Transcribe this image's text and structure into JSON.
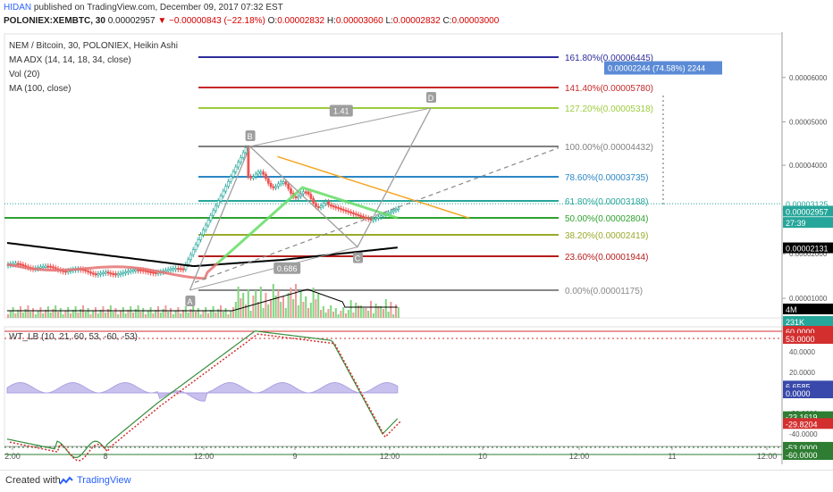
{
  "header": {
    "author": "HIDAN",
    "published": "published on TradingView.com, December 09, 2017 07:32 EST",
    "symbol": "POLONIEX:XEMBTC, 30",
    "price": "0.00002957",
    "change_arrow": "▼",
    "change": "−0.00000843 (−22.18%)",
    "o_label": "O:",
    "o": "0.00002832",
    "h_label": "H:",
    "h": "0.00003060",
    "l_label": "L:",
    "l": "0.00002832",
    "c_label": "C:",
    "c": "0.00003000"
  },
  "legend": {
    "title": "NEM / Bitcoin, 30, POLONIEX, Heikin Ashi",
    "adx": "MA ADX (14, 14, 18, 34, close)",
    "vol": "Vol (20)",
    "ma": "MA (100, close)",
    "wt": "WT_LB (10, 21, 60, 53, -60, -53)"
  },
  "footer": {
    "created": "Created with",
    "brand": "TradingView",
    "logo_icon": "tradingview-logo-icon"
  },
  "colors": {
    "up": "#26a69a",
    "down": "#ef5350",
    "fib_1618": "#2c2c9c",
    "fib_1414": "#c62828",
    "fib_1272": "#9ccc3d",
    "fib_100": "#808080",
    "fib_786": "#2a87c6",
    "fib_618": "#26a69a",
    "fib_50": "#2fa12f",
    "fib_382": "#9aaa2a",
    "fib_236": "#b71c1c",
    "fib_0": "#888888",
    "pattern_fill": "#7e57c2",
    "trendline": "#f5a623"
  },
  "chart_data": [
    {
      "type": "candlestick",
      "title": "NEM / Bitcoin, 30, POLONIEX, Heikin Ashi",
      "x_tick_labels": [
        "2:00",
        "8",
        "12:00",
        "9",
        "12:00",
        "10",
        "12:00",
        "11",
        "12:00"
      ],
      "y_ticks": [
        "0.00006000",
        "0.00005000",
        "0.00004000",
        "0.00003000",
        "0.00002000",
        "0.00001000"
      ],
      "ylim": [
        5.2e-06,
        7.5e-06
      ],
      "price_labels": [
        {
          "text": "0.00003125",
          "color": "#26a69a",
          "value": 3.125e-05
        },
        {
          "text": "0.00002957",
          "color": "#26a69a",
          "value": 2.957e-05
        },
        {
          "text": "27:39",
          "color": "#26a69a",
          "value": 2.7e-05
        },
        {
          "text": "0.00002131",
          "color": "#000000",
          "value": 2.131e-05
        }
      ],
      "fib_levels": [
        {
          "label": "161.80%(0.00006445)",
          "value": 6.445e-05,
          "color": "#2c2c9c"
        },
        {
          "label": "141.40%(0.00005780)",
          "value": 5.78e-05,
          "color": "#c62828"
        },
        {
          "label": "127.20%(0.00005318)",
          "value": 5.318e-05,
          "color": "#9ccc3d"
        },
        {
          "label": "100.00%(0.00004432)",
          "value": 4.432e-05,
          "color": "#808080"
        },
        {
          "label": "78.60%(0.00003735)",
          "value": 3.735e-05,
          "color": "#2a87c6"
        },
        {
          "label": "61.80%(0.00003188)",
          "value": 3.188e-05,
          "color": "#26a69a"
        },
        {
          "label": "50.00%(0.00002804)",
          "value": 2.804e-05,
          "color": "#2fa12f"
        },
        {
          "label": "38.20%(0.00002419)",
          "value": 2.419e-05,
          "color": "#9aaa2a"
        },
        {
          "label": "23.60%(0.00001944)",
          "value": 1.944e-05,
          "color": "#b71c1c"
        },
        {
          "label": "0.00%(0.00001175)",
          "value": 1.175e-05,
          "color": "#888888"
        }
      ],
      "pattern_points": [
        {
          "label": "A",
          "bar": 73,
          "value": 1.175e-05
        },
        {
          "label": "B",
          "bar": 97,
          "value": 4.432e-05
        },
        {
          "label": "C",
          "bar": 140,
          "value": 2.15e-05
        },
        {
          "label": "D",
          "bar": 155,
          "value": 5.318e-05
        }
      ],
      "pattern_ratios": [
        "1.41",
        "0.686"
      ],
      "measure_label": "0.00002244 (74.58%) 2244",
      "volume_axis_labels": [
        "4M",
        "231K"
      ]
    },
    {
      "type": "line",
      "title": "WT_LB (10, 21, 60, 53, -60, -53)",
      "ylim": [
        -70,
        70
      ],
      "y_ticks": [
        "40.0000",
        "20.0000",
        "0.0000",
        "-20.0000",
        "-40.0000"
      ],
      "level_labels": [
        {
          "text": "60.0000",
          "value": 60,
          "color": "#d32f2f"
        },
        {
          "text": "53.0000",
          "value": 53,
          "color": "#d32f2f"
        },
        {
          "text": "6.6585",
          "value": 6.6585,
          "color": "#3949ab"
        },
        {
          "text": "0.0000",
          "value": 0,
          "color": "#3949ab"
        },
        {
          "text": "-23.1619",
          "value": -23.1619,
          "color": "#2e7d32"
        },
        {
          "text": "-29.8204",
          "value": -29.8204,
          "color": "#d32f2f"
        },
        {
          "text": "-53.0000",
          "value": -53,
          "color": "#2e7d32"
        },
        {
          "text": "-60.0000",
          "value": -60,
          "color": "#2e7d32"
        }
      ]
    }
  ]
}
